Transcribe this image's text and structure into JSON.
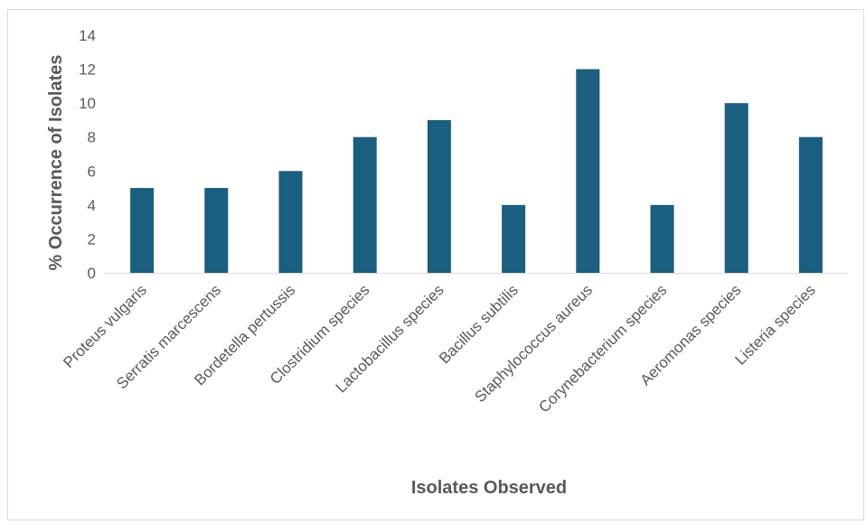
{
  "chart_data": {
    "type": "bar",
    "categories": [
      "Proteus vulgaris",
      "Serratis marcescens",
      "Bordetella pertussis",
      "Clostridium species",
      "Lactobacillus species",
      "Bacillus subtilis",
      "Staphylococcus aureus",
      "Corynebacterium species",
      "Aeromonas species",
      "Listeria species"
    ],
    "values": [
      5,
      5,
      6,
      8,
      9,
      4,
      12,
      4,
      10,
      8
    ],
    "title": "",
    "xlabel": "Isolates Observed",
    "ylabel": "% Occurrence of Isolates",
    "ylim": [
      0,
      14
    ],
    "yticks": [
      0,
      2,
      4,
      6,
      8,
      10,
      12,
      14
    ],
    "grid": false,
    "legend": "none",
    "bar_color": "#1a5e80"
  }
}
